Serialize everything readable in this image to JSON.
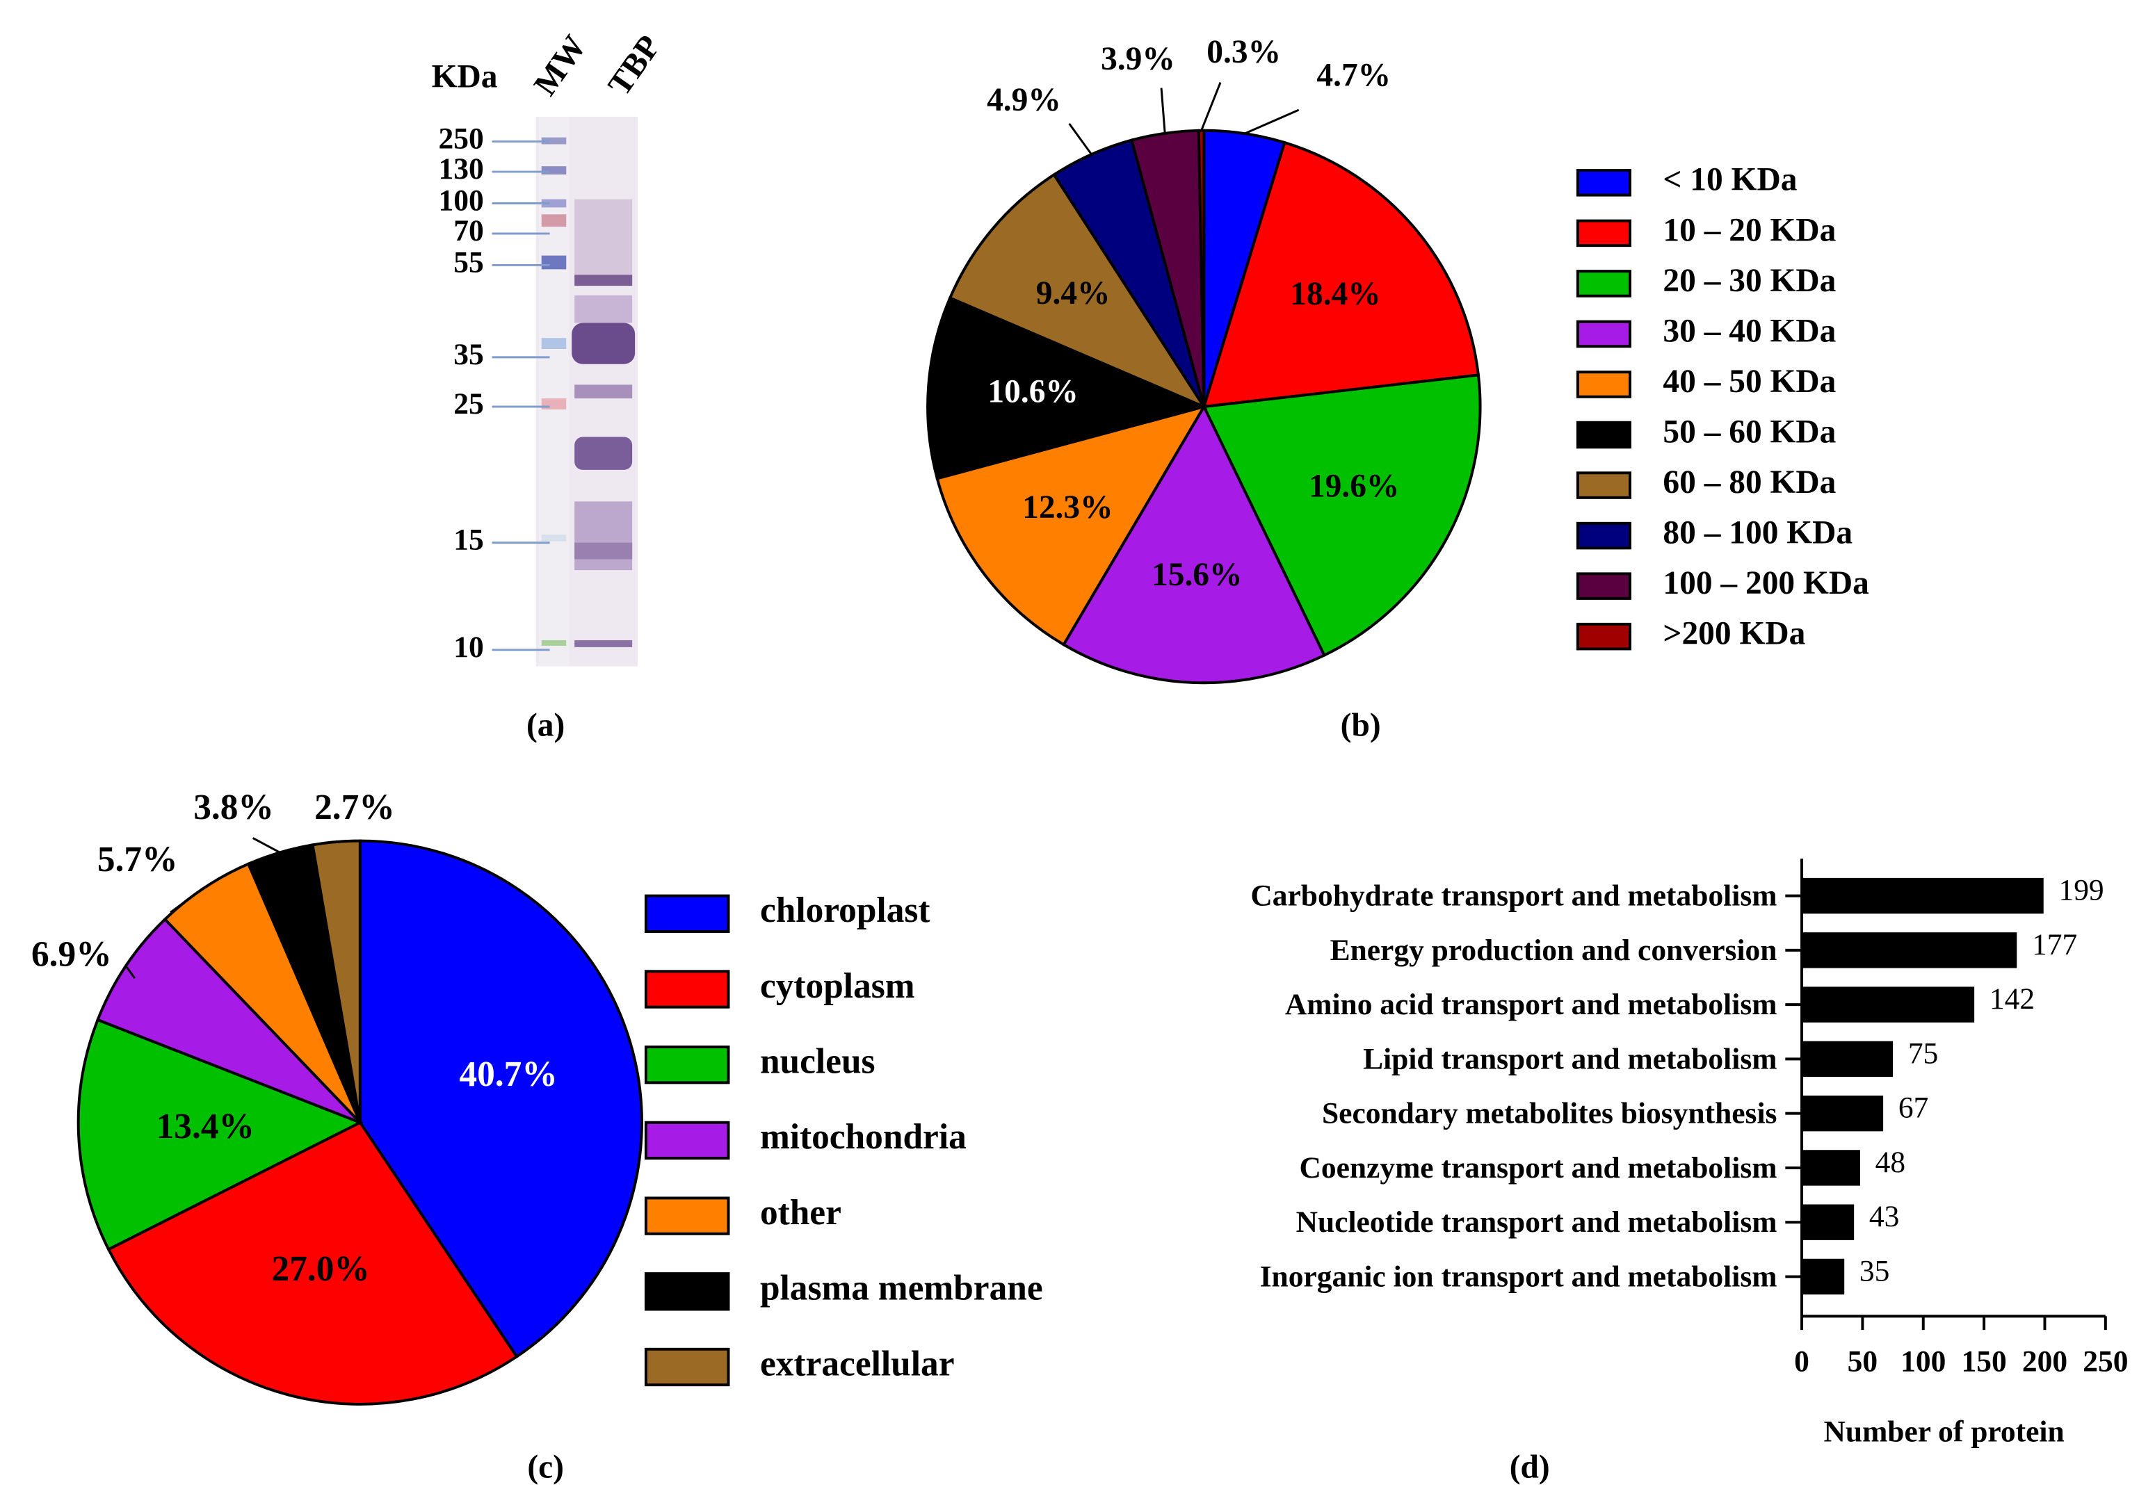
{
  "gel_panel": {
    "panel_label": "(a)",
    "unit_label": "KDa",
    "lanes": [
      "MW",
      "TBP"
    ],
    "marker_sizes": [
      250,
      130,
      100,
      70,
      55,
      35,
      25,
      15,
      10
    ]
  },
  "chart_data": [
    {
      "type": "pie",
      "panel_label": "(b)",
      "categories": [
        "< 10 KDa",
        "10 – 20 KDa",
        "20 – 30 KDa",
        "30 – 40 KDa",
        "40 – 50 KDa",
        "50 – 60 KDa",
        "60 – 80 KDa",
        "80 – 100 KDa",
        "100 – 200 KDa",
        ">200 KDa"
      ],
      "values": [
        4.7,
        18.4,
        19.6,
        15.6,
        12.3,
        10.6,
        9.4,
        4.9,
        3.9,
        0.3
      ],
      "value_labels": [
        "4.7%",
        "18.4%",
        "19.6%",
        "15.6%",
        "12.3%",
        "10.6%",
        "9.4%",
        "4.9%",
        "3.9%",
        "0.3%"
      ],
      "colors": [
        "#0000ff",
        "#ff0000",
        "#00c000",
        "#a61ce6",
        "#ff8000",
        "#000000",
        "#9b6a25",
        "#00007f",
        "#5a0040",
        "#a00000"
      ]
    },
    {
      "type": "pie",
      "panel_label": "(c)",
      "categories": [
        "chloroplast",
        "cytoplasm",
        "nucleus",
        "mitochondria",
        "other",
        "plasma membrane",
        "extracellular"
      ],
      "values": [
        40.7,
        27.0,
        13.4,
        6.9,
        5.7,
        3.8,
        2.7
      ],
      "value_labels": [
        "40.7%",
        "27.0%",
        "13.4%",
        "6.9%",
        "5.7%",
        "3.8%",
        "2.7%"
      ],
      "colors": [
        "#0000ff",
        "#ff0000",
        "#00c000",
        "#a61ce6",
        "#ff8000",
        "#000000",
        "#9b6a25"
      ]
    },
    {
      "type": "bar",
      "orientation": "horizontal",
      "panel_label": "(d)",
      "categories": [
        "Carbohydrate transport and metabolism",
        "Energy production and conversion",
        "Amino acid transport and metabolism",
        "Lipid transport and metabolism",
        "Secondary metabolites biosynthesis",
        "Coenzyme transport and metabolism",
        "Nucleotide transport and metabolism",
        "Inorganic ion transport and metabolism"
      ],
      "values": [
        199,
        177,
        142,
        75,
        67,
        48,
        43,
        35
      ],
      "color": "#000000",
      "xlabel": "Number of protein",
      "xlim": [
        0,
        250
      ],
      "xticks": [
        0,
        50,
        100,
        150,
        200,
        250
      ]
    }
  ]
}
